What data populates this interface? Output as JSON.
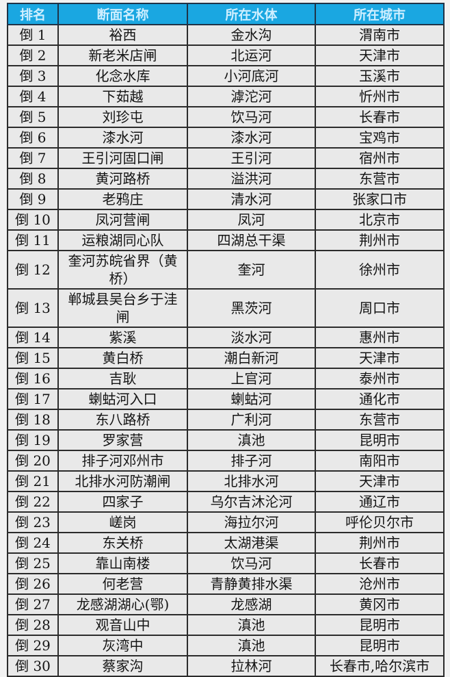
{
  "chart_data": {
    "type": "table",
    "title": "",
    "columns": [
      "排名",
      "断面名称",
      "所在水体",
      "所在城市"
    ],
    "rows": [
      [
        "倒 1",
        "裕西",
        "金水沟",
        "渭南市"
      ],
      [
        "倒 2",
        "新老米店闸",
        "北运河",
        "天津市"
      ],
      [
        "倒 3",
        "化念水库",
        "小河底河",
        "玉溪市"
      ],
      [
        "倒 4",
        "下茹越",
        "滹沱河",
        "忻州市"
      ],
      [
        "倒 5",
        "刘珍屯",
        "饮马河",
        "长春市"
      ],
      [
        "倒 6",
        "漆水河",
        "漆水河",
        "宝鸡市"
      ],
      [
        "倒 7",
        "王引河固口闸",
        "王引河",
        "宿州市"
      ],
      [
        "倒 8",
        "黄河路桥",
        "溢洪河",
        "东营市"
      ],
      [
        "倒 9",
        "老鸦庄",
        "清水河",
        "张家口市"
      ],
      [
        "倒 10",
        "凤河营闸",
        "凤河",
        "北京市"
      ],
      [
        "倒 11",
        "运粮湖同心队",
        "四湖总干渠",
        "荆州市"
      ],
      [
        "倒 12",
        "奎河苏皖省界（黄桥）",
        "奎河",
        "徐州市"
      ],
      [
        "倒 13",
        "郸城县吴台乡于洼闸",
        "黑茨河",
        "周口市"
      ],
      [
        "倒 14",
        "紫溪",
        "淡水河",
        "惠州市"
      ],
      [
        "倒 15",
        "黄白桥",
        "潮白新河",
        "天津市"
      ],
      [
        "倒 16",
        "吉耿",
        "上官河",
        "泰州市"
      ],
      [
        "倒 17",
        "蝲蛄河入口",
        "蝲蛄河",
        "通化市"
      ],
      [
        "倒 18",
        "东八路桥",
        "广利河",
        "东营市"
      ],
      [
        "倒 19",
        "罗家营",
        "滇池",
        "昆明市"
      ],
      [
        "倒 20",
        "排子河邓州市",
        "排子河",
        "南阳市"
      ],
      [
        "倒 21",
        "北排水河防潮闸",
        "北排水河",
        "天津市"
      ],
      [
        "倒 22",
        "四家子",
        "乌尔吉沐沦河",
        "通辽市"
      ],
      [
        "倒 23",
        "嵯岗",
        "海拉尔河",
        "呼伦贝尔市"
      ],
      [
        "倒 24",
        "东关桥",
        "太湖港渠",
        "荆州市"
      ],
      [
        "倒 25",
        "靠山南楼",
        "饮马河",
        "长春市"
      ],
      [
        "倒 26",
        "何老营",
        "青静黄排水渠",
        "沧州市"
      ],
      [
        "倒 27",
        "龙感湖湖心(鄂)",
        "龙感湖",
        "黄冈市"
      ],
      [
        "倒 28",
        "观音山中",
        "滇池",
        "昆明市"
      ],
      [
        "倒 29",
        "灰湾中",
        "滇池",
        "昆明市"
      ],
      [
        "倒 30",
        "蔡家沟",
        "拉林河",
        "长春市,哈尔滨市"
      ]
    ]
  },
  "colors": {
    "page_bg": "#F2F2F2",
    "header_bg": "#1AA7E1",
    "header_text": "#CFEFFF",
    "header_border": "#1F3347",
    "row_bg": "#E9E9E9",
    "border": "#2B2B2B",
    "body_text": "#141414"
  }
}
